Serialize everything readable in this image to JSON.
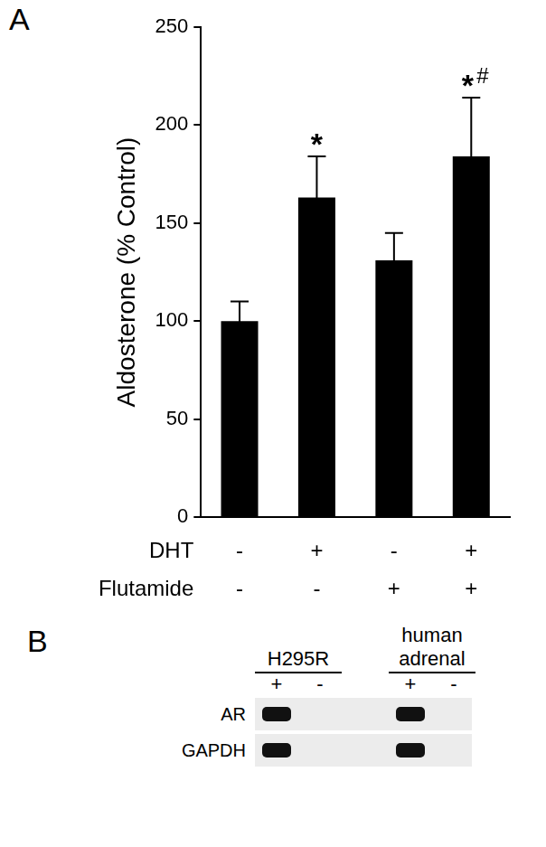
{
  "panel_labels": [
    "A",
    "B"
  ],
  "chart_data": {
    "type": "bar",
    "y_label": "Aldosterone (% Control)",
    "categories": [
      null,
      null,
      null,
      null
    ],
    "values": [
      100,
      163,
      131,
      184
    ],
    "errors": [
      10,
      21,
      14,
      30
    ],
    "significance": [
      null,
      [
        "*"
      ],
      null,
      [
        "*",
        "#"
      ]
    ],
    "treatment_rows": [
      {
        "name": "DHT",
        "values": [
          "-",
          "+",
          "-",
          "+"
        ]
      },
      {
        "name": "Flutamide",
        "values": [
          "-",
          "-",
          "+",
          "+"
        ]
      }
    ],
    "color": "#000000",
    "ylim": [
      0,
      250
    ],
    "yticks": [
      0,
      50,
      100,
      150,
      200,
      250
    ],
    "grid": false
  },
  "gel": {
    "groups": [
      {
        "name": "H295R",
        "lanes": [
          "+",
          "-"
        ]
      },
      {
        "name": "human adrenal",
        "lanes": [
          "+",
          "-"
        ]
      }
    ],
    "rows": [
      "AR",
      "GAPDH"
    ]
  }
}
